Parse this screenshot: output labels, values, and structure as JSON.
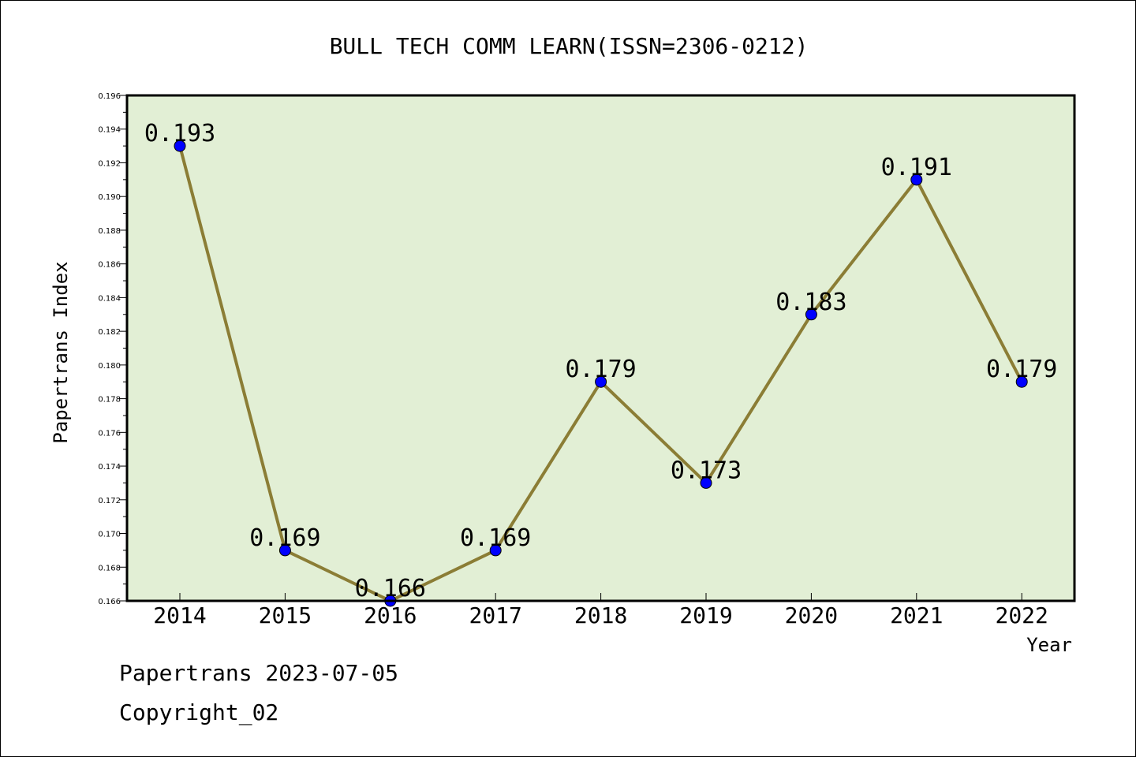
{
  "chart_data": {
    "type": "line",
    "title": "BULL TECH COMM LEARN(ISSN=2306-0212)",
    "xlabel": "Year",
    "ylabel": "Papertrans Index",
    "categories": [
      "2014",
      "2015",
      "2016",
      "2017",
      "2018",
      "2019",
      "2020",
      "2021",
      "2022"
    ],
    "values": [
      0.193,
      0.169,
      0.166,
      0.169,
      0.179,
      0.173,
      0.183,
      0.191,
      0.179
    ],
    "data_labels": [
      "0.193",
      "0.169",
      "0.166",
      "0.169",
      "0.179",
      "0.173",
      "0.183",
      "0.191",
      "0.179"
    ],
    "ylim": [
      0.166,
      0.196
    ],
    "yticks": [
      "0.166",
      "0.168",
      "0.170",
      "0.172",
      "0.174",
      "0.176",
      "0.178",
      "0.180",
      "0.182",
      "0.184",
      "0.186",
      "0.188",
      "0.190",
      "0.192",
      "0.194",
      "0.196"
    ],
    "grid": false,
    "legend": "none",
    "colors": {
      "plot_background": "#e2efd5",
      "line": "#8b7d35",
      "marker": "#0000ff",
      "axis": "#000000"
    }
  },
  "footer": {
    "date_line": "Papertrans 2023-07-05",
    "copyright_line": "Copyright_02"
  }
}
